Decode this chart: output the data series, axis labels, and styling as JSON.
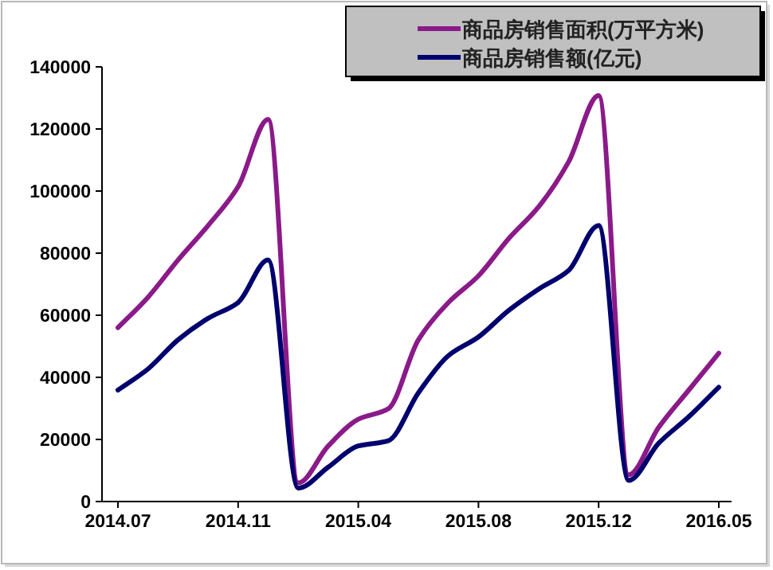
{
  "chart_data": {
    "type": "line",
    "categories": [
      "2014.07",
      null,
      null,
      null,
      "2014.11",
      null,
      null,
      null,
      "2015.04",
      null,
      null,
      null,
      "2015.08",
      null,
      null,
      null,
      "2015.12",
      null,
      null,
      null,
      "2016.05"
    ],
    "series": [
      {
        "name": "商品房销售面积(万平方米)",
        "color": "#8b1a89",
        "values": [
          56000,
          65800,
          77800,
          88900,
          101400,
          123100,
          6000,
          17900,
          26500,
          29900,
          52100,
          64100,
          72700,
          84600,
          94900,
          109400,
          130800,
          8600,
          23900,
          35900,
          47800
        ]
      },
      {
        "name": "商品房销售额(亿元)",
        "color": "#00006e",
        "values": [
          35900,
          42700,
          52100,
          59000,
          64100,
          77800,
          4300,
          11100,
          17900,
          19600,
          35000,
          47000,
          53000,
          61500,
          68400,
          74400,
          88900,
          6800,
          18800,
          27300,
          36800
        ]
      }
    ],
    "ylim": [
      0,
      140000
    ],
    "yticks": [
      0,
      20000,
      40000,
      60000,
      80000,
      100000,
      120000,
      140000
    ],
    "legend": "top right",
    "marker": "none",
    "line_style": "solid"
  }
}
